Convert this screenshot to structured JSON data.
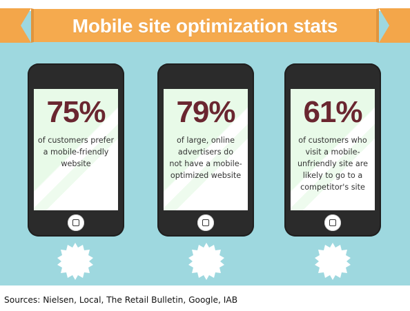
{
  "header": {
    "title": "Mobile site optimization stats"
  },
  "phones": [
    {
      "stat": "75%",
      "desc_lines": [
        "of customers prefer",
        "a mobile-friendly",
        "website"
      ]
    },
    {
      "stat": "79%",
      "desc_lines": [
        "of large, online",
        "advertisers do",
        "not have a mobile-",
        "optimized website"
      ]
    },
    {
      "stat": "61%",
      "desc_lines": [
        "of customers who",
        "visit a mobile-",
        "unfriendly site are",
        "likely to go to a",
        "competitor's site"
      ]
    }
  ],
  "footer": {
    "sources": "Sources: Nielsen, Local, The Retail Bulletin, Google, IAB"
  },
  "colors": {
    "background": "#9ed8df",
    "ribbon": "#f5a94b",
    "phone_body": "#2b2b2b",
    "stat_text": "#6a2630",
    "screen_accent": "#e8fae8",
    "gear": "#ffffff"
  }
}
